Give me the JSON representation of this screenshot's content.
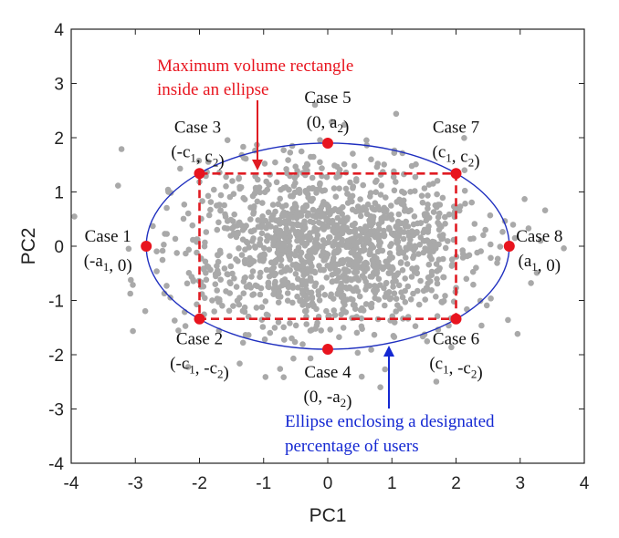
{
  "chart_data": {
    "type": "scatter",
    "xlabel": "PC1",
    "ylabel": "PC2",
    "xlim": [
      -4,
      4
    ],
    "ylim": [
      -4,
      4
    ],
    "xticks": [
      -4,
      -3,
      -2,
      -1,
      0,
      1,
      2,
      3,
      4
    ],
    "yticks": [
      -4,
      -3,
      -2,
      -1,
      0,
      1,
      2,
      3,
      4
    ],
    "grid": false,
    "ellipse": {
      "a1": 2.83,
      "a2": 1.9,
      "color": "#1f2fbf"
    },
    "rectangle": {
      "c1": 2.0,
      "c2": 1.34,
      "color": "#e01b22",
      "style": "dashed"
    },
    "scatter_color": "#a9a9a9",
    "case_color": "#e8141e",
    "cases": [
      {
        "name": "Case 1",
        "coord_label": "(-a1, 0)",
        "x": -2.83,
        "y": 0
      },
      {
        "name": "Case 2",
        "coord_label": "(-c1, -c2)",
        "x": -2.0,
        "y": -1.34
      },
      {
        "name": "Case 3",
        "coord_label": "(-c1, c2)",
        "x": -2.0,
        "y": 1.34
      },
      {
        "name": "Case 4",
        "coord_label": "(0, -a2)",
        "x": 0,
        "y": -1.9
      },
      {
        "name": "Case 5",
        "coord_label": "(0, a2)",
        "x": 0,
        "y": 1.9
      },
      {
        "name": "Case 6",
        "coord_label": "(c1, -c2)",
        "x": 2.0,
        "y": -1.34
      },
      {
        "name": "Case 7",
        "coord_label": "(c1, c2)",
        "x": 2.0,
        "y": 1.34
      },
      {
        "name": "Case 8",
        "coord_label": "(a1, 0)",
        "x": 2.83,
        "y": 0
      }
    ],
    "annotations": {
      "rectangle_line1": "Maximum volume rectangle",
      "rectangle_line2": "inside an ellipse",
      "ellipse_line1": "Ellipse enclosing a designated",
      "ellipse_line2": "percentage of users"
    }
  }
}
